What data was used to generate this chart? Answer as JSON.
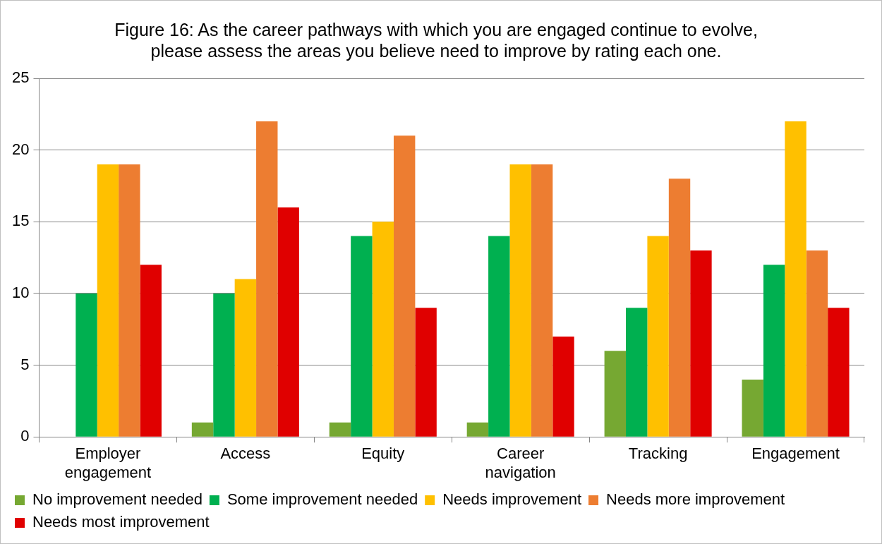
{
  "chart_data": {
    "type": "bar",
    "title": "Figure 16: As the career pathways with which you are engaged continue to evolve, please assess the areas you believe need to improve by rating each one.",
    "categories": [
      "Employer engagement",
      "Access",
      "Equity",
      "Career navigation",
      "Tracking",
      "Engagement"
    ],
    "series": [
      {
        "name": "No improvement needed",
        "color": "#76a832",
        "values": [
          0,
          1,
          1,
          1,
          6,
          4
        ]
      },
      {
        "name": "Some improvement needed",
        "color": "#00b050",
        "values": [
          10,
          10,
          14,
          14,
          9,
          12
        ]
      },
      {
        "name": "Needs improvement",
        "color": "#ffc000",
        "values": [
          19,
          11,
          15,
          19,
          14,
          22
        ]
      },
      {
        "name": "Needs more improvement",
        "color": "#ed7d31",
        "values": [
          19,
          22,
          21,
          19,
          18,
          13
        ]
      },
      {
        "name": "Needs most improvement",
        "color": "#e00000",
        "values": [
          12,
          16,
          9,
          7,
          13,
          9
        ]
      }
    ],
    "ylim": [
      0,
      25
    ],
    "yticks": [
      0,
      5,
      10,
      15,
      20,
      25
    ],
    "grid": "y",
    "legend": "bottom"
  }
}
